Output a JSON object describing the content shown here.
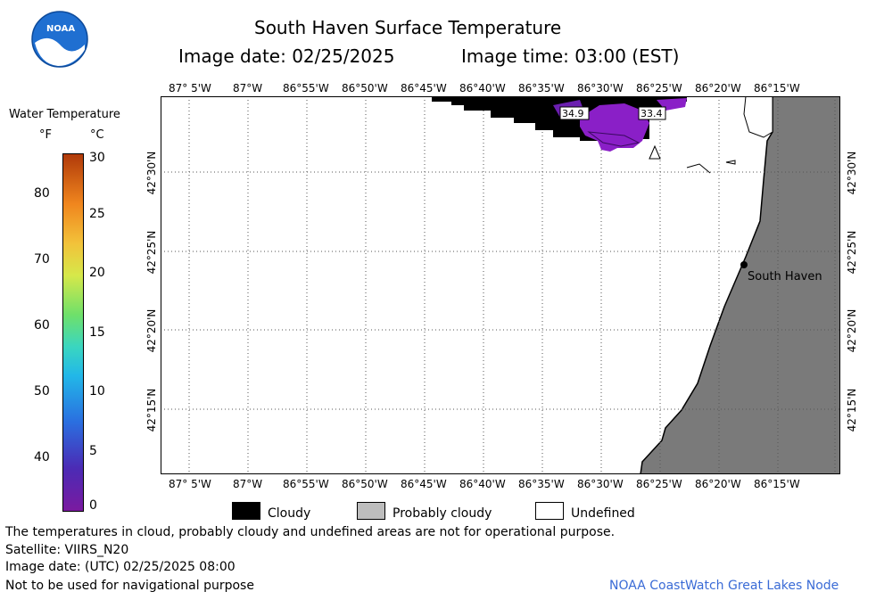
{
  "header": {
    "title": "South Haven Surface Temperature",
    "image_date": "Image date: 02/25/2025",
    "image_time": "Image time: 03:00 (EST)"
  },
  "logo": {
    "text": "NOAA"
  },
  "colorbar": {
    "title": "Water Temperature",
    "unit_f": "°F",
    "unit_c": "°C",
    "f_ticks": [
      "80",
      "70",
      "60",
      "50",
      "40"
    ],
    "c_ticks": [
      "30",
      "25",
      "20",
      "15",
      "10",
      "5",
      "0"
    ]
  },
  "map": {
    "lon_labels": [
      "87° 5'W",
      "87°W",
      "86°55'W",
      "86°50'W",
      "86°45'W",
      "86°40'W",
      "86°35'W",
      "86°30'W",
      "86°25'W",
      "86°20'W",
      "86°15'W"
    ],
    "lat_labels": [
      "42°30'N",
      "42°25'N",
      "42°20'N",
      "42°15'N"
    ],
    "value_labels": [
      "34.9",
      "33.4"
    ],
    "city": "South Haven",
    "colors": {
      "cloud": "#000000",
      "land": "#7a7a7a",
      "water_cold": "#8a1fc7",
      "water_mid": "#5b1aa8"
    }
  },
  "legend": {
    "cloudy": "Cloudy",
    "probably_cloudy": "Probably cloudy",
    "undefined": "Undefined"
  },
  "footer": {
    "note": "The temperatures in cloud, probably cloudy and undefined areas are not for operational purpose.",
    "satellite": "Satellite: VIIRS_N20",
    "utc_date": "Image date: (UTC) 02/25/2025  08:00",
    "nav": "Not to be used for navigational purpose",
    "credit": "NOAA CoastWatch Great Lakes Node"
  }
}
